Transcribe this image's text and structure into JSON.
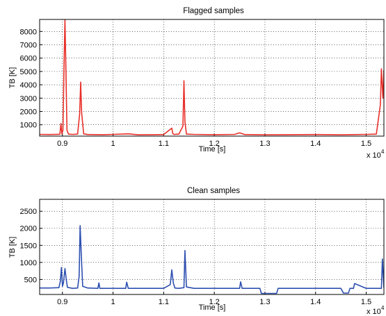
{
  "chart_data": [
    {
      "type": "line",
      "title": "Flagged samples",
      "xlabel": "Time [s]",
      "ylabel": "TB [K]",
      "x_multiplier": "x 10",
      "x_exponent": "4",
      "xlim": [
        0.855,
        1.535
      ],
      "ylim": [
        150,
        8900
      ],
      "xticks": [
        0.9,
        1,
        1.1,
        1.2,
        1.3,
        1.4,
        1.5
      ],
      "yticks": [
        1000,
        2000,
        3000,
        4000,
        5000,
        6000,
        7000,
        8000
      ],
      "grid": true,
      "color": "#e8302a",
      "series": [
        {
          "x": [
            0.855,
            0.875,
            0.895,
            0.897,
            0.899,
            0.901,
            0.903,
            0.905,
            0.907,
            0.909,
            0.912,
            0.92,
            0.93,
            0.934,
            0.936,
            0.938,
            0.942,
            0.95,
            0.98,
            1.0,
            1.03,
            1.05,
            1.08,
            1.1,
            1.116,
            1.118,
            1.12,
            1.13,
            1.138,
            1.14,
            1.142,
            1.145,
            1.16,
            1.2,
            1.24,
            1.25,
            1.26,
            1.3,
            1.35,
            1.4,
            1.45,
            1.5,
            1.52,
            1.528,
            1.53,
            1.533,
            1.535
          ],
          "y": [
            280,
            270,
            290,
            1100,
            300,
            600,
            5000,
            8900,
            4800,
            600,
            300,
            280,
            300,
            1800,
            4200,
            1900,
            320,
            270,
            260,
            280,
            320,
            250,
            260,
            270,
            750,
            350,
            280,
            300,
            900,
            4300,
            1200,
            300,
            280,
            260,
            280,
            400,
            270,
            250,
            260,
            270,
            250,
            280,
            300,
            2500,
            5200,
            3000,
            5100
          ]
        }
      ]
    },
    {
      "type": "line",
      "title": "Clean samples",
      "xlabel": "Time [s]",
      "ylabel": "TB [K]",
      "x_multiplier": "x 10",
      "x_exponent": "4",
      "xlim": [
        0.855,
        1.535
      ],
      "ylim": [
        60,
        2850
      ],
      "xticks": [
        0.9,
        1,
        1.1,
        1.2,
        1.3,
        1.4,
        1.5
      ],
      "yticks": [
        500,
        1000,
        1500,
        2000,
        2500
      ],
      "grid": true,
      "color": "#2d4fb0",
      "series": [
        {
          "x": [
            0.855,
            0.875,
            0.893,
            0.896,
            0.898,
            0.9,
            0.902,
            0.905,
            0.908,
            0.91,
            0.92,
            0.93,
            0.933,
            0.935,
            0.937,
            0.94,
            0.95,
            0.97,
            0.972,
            0.974,
            1.0,
            1.025,
            1.027,
            1.03,
            1.06,
            1.1,
            1.113,
            1.116,
            1.119,
            1.122,
            1.13,
            1.14,
            1.142,
            1.145,
            1.16,
            1.2,
            1.25,
            1.252,
            1.255,
            1.27,
            1.29,
            1.293,
            1.295,
            1.31,
            1.323,
            1.326,
            1.34,
            1.38,
            1.42,
            1.45,
            1.455,
            1.458,
            1.465,
            1.468,
            1.475,
            1.477,
            1.5,
            1.53,
            1.532,
            1.535
          ],
          "y": [
            250,
            250,
            260,
            450,
            850,
            300,
            400,
            820,
            450,
            270,
            240,
            250,
            600,
            2080,
            1300,
            300,
            250,
            240,
            400,
            240,
            240,
            240,
            420,
            240,
            240,
            240,
            350,
            780,
            400,
            250,
            240,
            260,
            1350,
            280,
            240,
            240,
            240,
            430,
            240,
            240,
            240,
            90,
            90,
            90,
            90,
            240,
            240,
            240,
            240,
            240,
            100,
            100,
            100,
            240,
            240,
            380,
            240,
            240,
            1100,
            250
          ]
        }
      ]
    }
  ]
}
